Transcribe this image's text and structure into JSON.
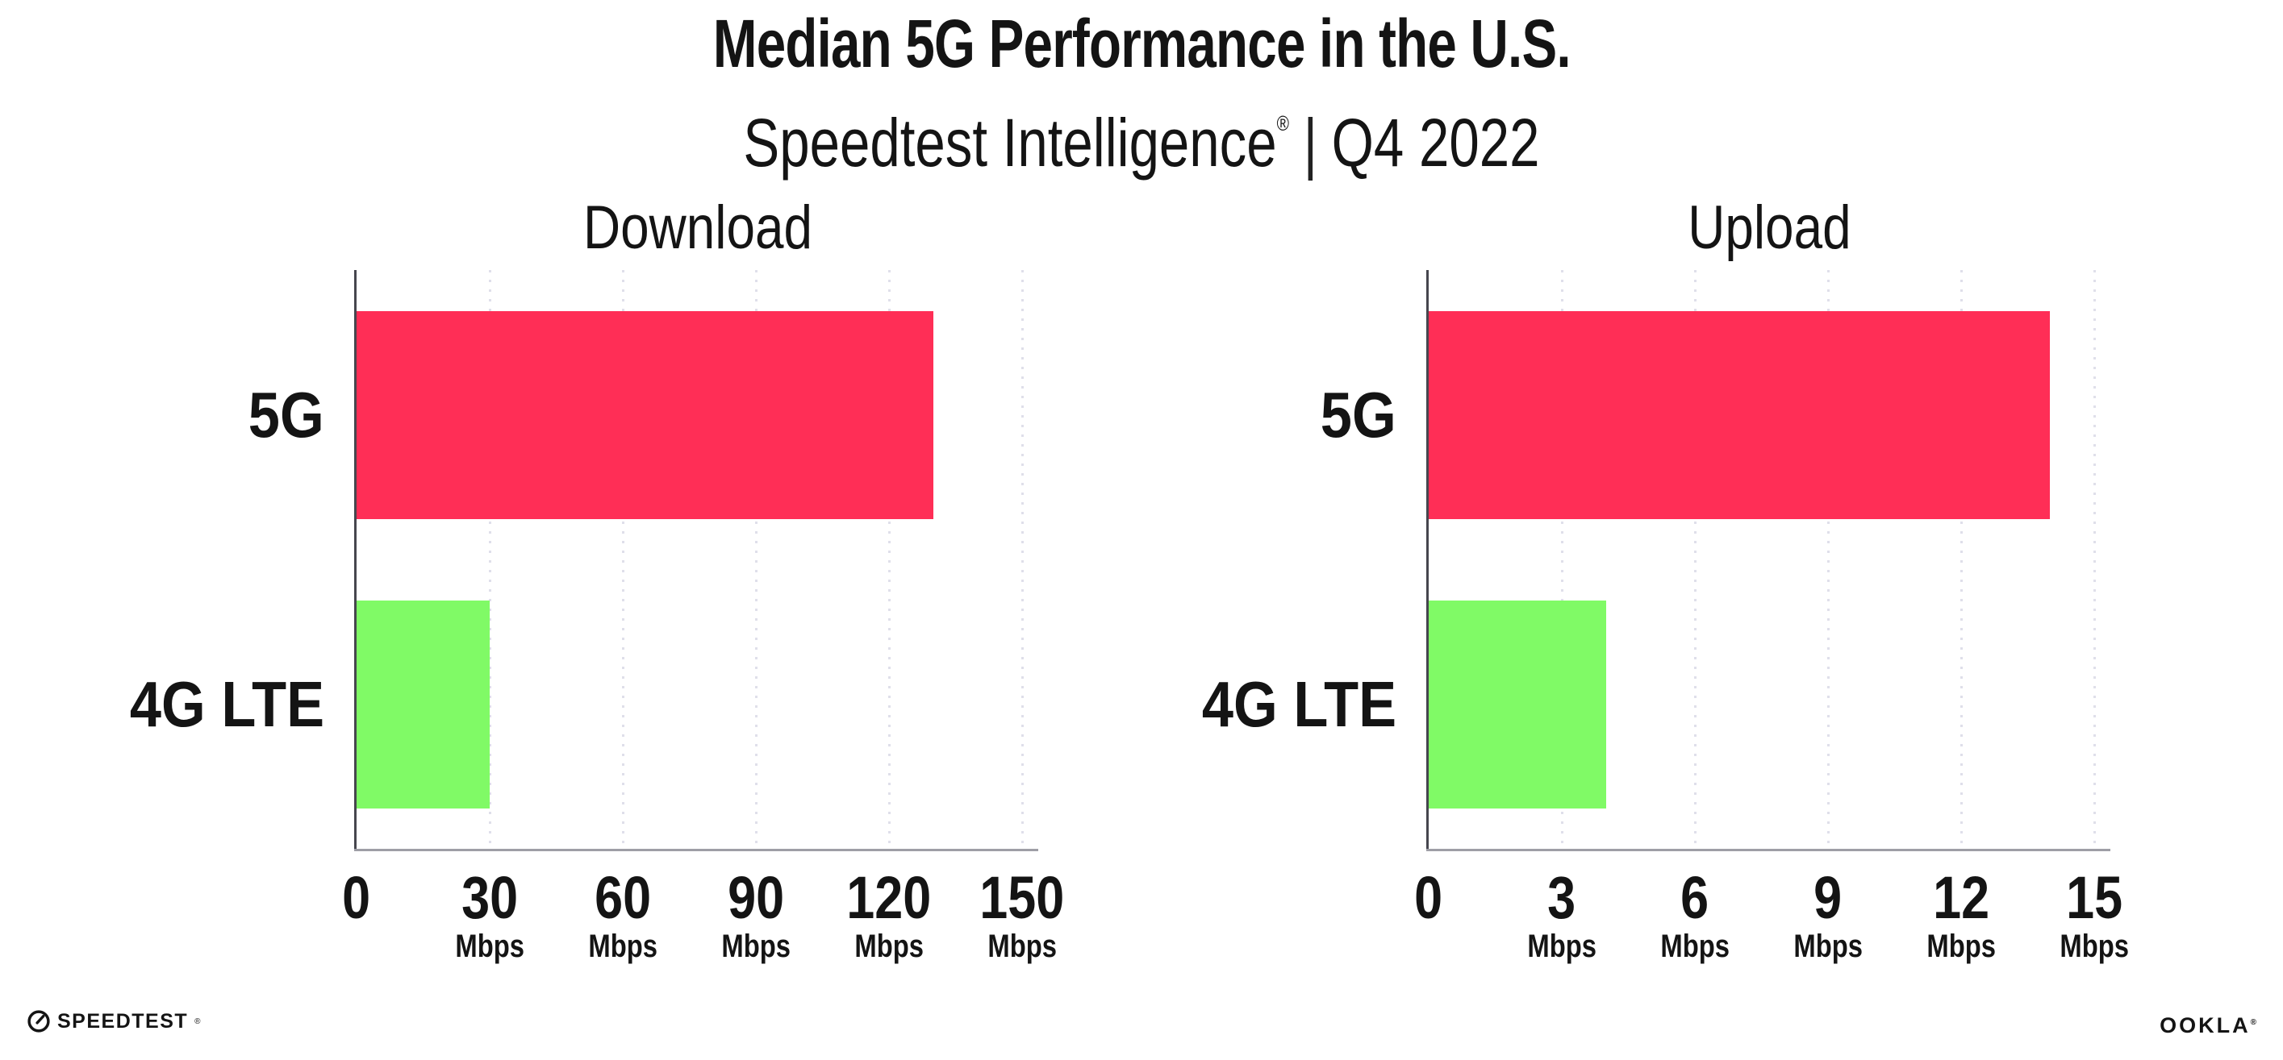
{
  "header": {
    "title": "Median 5G Performance in the U.S.",
    "subtitle_brand": "Speedtest Intelligence",
    "subtitle_reg": "®",
    "subtitle_sep": "|",
    "subtitle_period": "Q4 2022"
  },
  "colors": {
    "bar_5g": "#FF2E56",
    "bar_4g_lte": "#80FA66",
    "gridline": "#DFDFEA",
    "axis_spine": "#46464E",
    "axis_line": "#9E9EA6",
    "text": "#141414"
  },
  "chart_data": [
    {
      "type": "bar",
      "orientation": "horizontal",
      "title": "Download",
      "categories": [
        "5G",
        "4G LTE"
      ],
      "values": [
        130,
        30
      ],
      "unit": "Mbps",
      "xticks": [
        0,
        30,
        60,
        90,
        120,
        150
      ],
      "xlim": [
        0,
        155
      ],
      "grid": "vertical-dotted",
      "legend": "none",
      "bar_colors": [
        "#FF2E56",
        "#80FA66"
      ]
    },
    {
      "type": "bar",
      "orientation": "horizontal",
      "title": "Upload",
      "categories": [
        "5G",
        "4G LTE"
      ],
      "values": [
        14,
        4
      ],
      "unit": "Mbps",
      "xticks": [
        0,
        3,
        6,
        9,
        12,
        15
      ],
      "xlim": [
        0,
        15.5
      ],
      "grid": "vertical-dotted",
      "legend": "none",
      "bar_colors": [
        "#FF2E56",
        "#80FA66"
      ]
    }
  ],
  "footer": {
    "speedtest_label": "SPEEDTEST",
    "speedtest_reg": "®",
    "ookla_label": "OOKLA",
    "ookla_reg": "®"
  }
}
